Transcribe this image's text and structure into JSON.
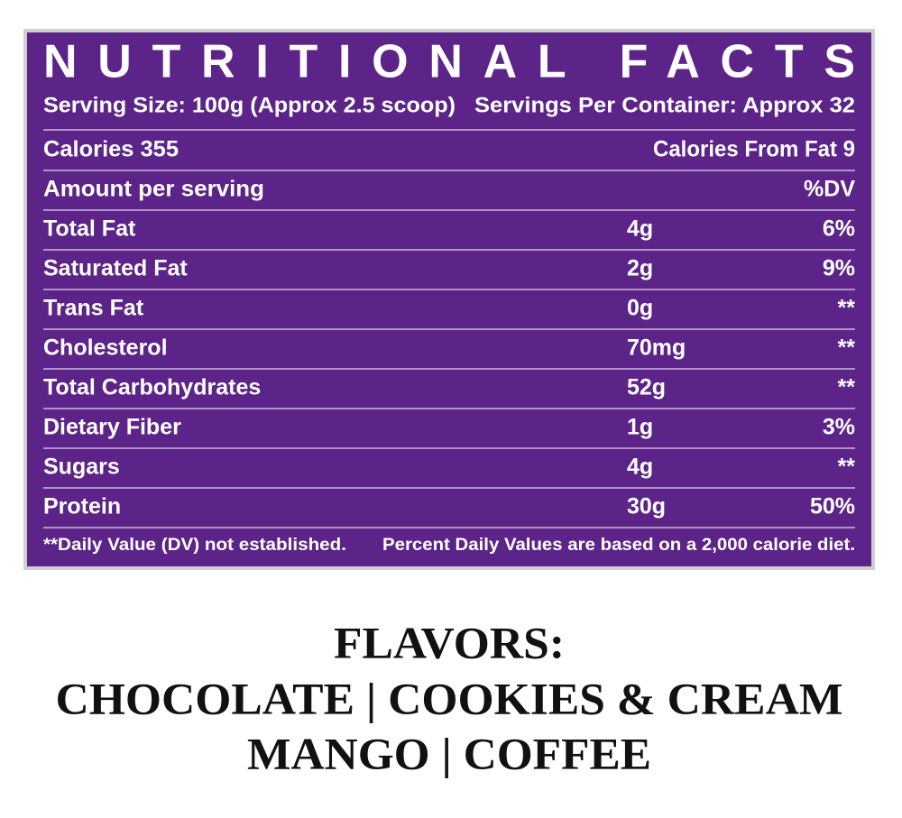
{
  "header": {
    "title": "NUTRITIONAL FACTS",
    "serving_size": "Serving Size: 100g (Approx 2.5 scoop)",
    "servings_per_container": "Servings Per Container: Approx 32"
  },
  "calories": {
    "calories": "Calories 355",
    "calories_from_fat": "Calories From Fat 9"
  },
  "table": {
    "header": [
      "Amount per serving",
      "%DV"
    ],
    "rows": [
      [
        "Total Fat",
        "4g",
        "6%"
      ],
      [
        "Saturated Fat",
        "2g",
        "9%"
      ],
      [
        "Trans Fat",
        "0g",
        "**"
      ],
      [
        "Cholesterol",
        "70mg",
        "**"
      ],
      [
        "Total Carbohydrates",
        "52g",
        "**"
      ],
      [
        "Dietary Fiber",
        "1g",
        "3%"
      ],
      [
        "Sugars",
        "4g",
        "**"
      ],
      [
        "Protein",
        "30g",
        "50%"
      ]
    ]
  },
  "footer": {
    "note": "**Daily Value (DV) not established.",
    "basis": "Percent Daily Values are based on a 2,000 calorie diet."
  },
  "flavors": {
    "heading": "FLAVORS:",
    "lines": [
      "CHOCOLATE | COOKIES & CREAM",
      "MANGO | COFFEE"
    ]
  }
}
